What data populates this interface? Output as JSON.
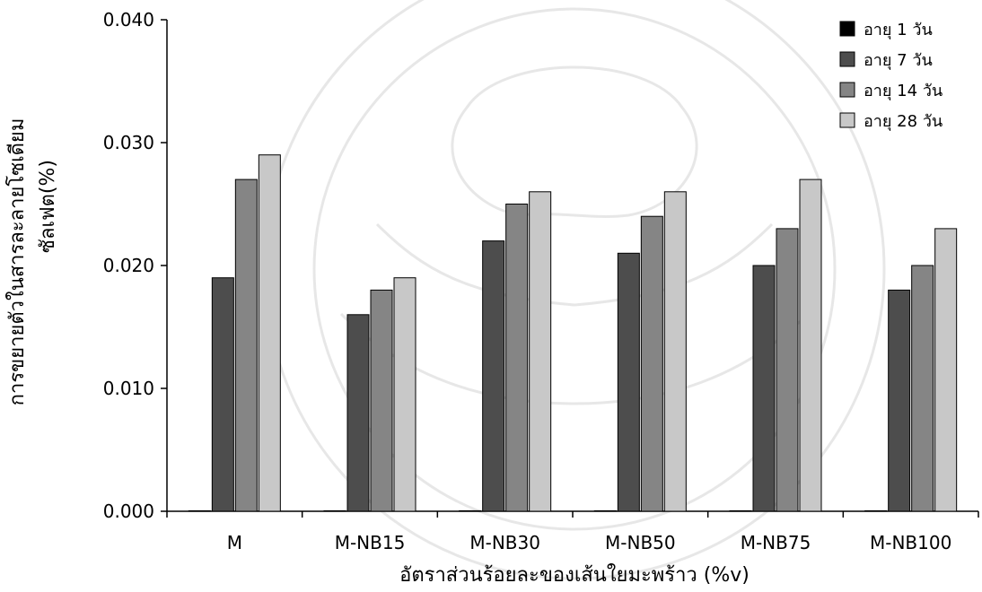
{
  "chart_data": {
    "type": "bar",
    "categories": [
      "M",
      "M-NB15",
      "M-NB30",
      "M-NB50",
      "M-NB75",
      "M-NB100"
    ],
    "series": [
      {
        "name": "อายุ 1 วัน",
        "values": [
          0.0,
          0.0,
          0.0,
          0.0,
          0.0,
          0.0
        ],
        "color": "#000000"
      },
      {
        "name": "อายุ 7 วัน",
        "values": [
          0.019,
          0.016,
          0.022,
          0.021,
          0.02,
          0.018
        ],
        "color": "#4d4d4d"
      },
      {
        "name": "อายุ 14 วัน",
        "values": [
          0.027,
          0.018,
          0.025,
          0.024,
          0.023,
          0.02
        ],
        "color": "#858585"
      },
      {
        "name": "อายุ 28 วัน",
        "values": [
          0.029,
          0.019,
          0.026,
          0.026,
          0.027,
          0.023
        ],
        "color": "#c8c8c8"
      }
    ],
    "xlabel": "อัตราส่วนร้อยละของเส้นใยมะพร้าว (%v)",
    "ylabel_line1": "การขยายตัวในสารละลายโซเดียม",
    "ylabel_line2": "ซัลเฟต(%)",
    "ylim": [
      0.0,
      0.04
    ],
    "yticks": [
      "0.000",
      "0.010",
      "0.020",
      "0.030",
      "0.040"
    ],
    "grid": false,
    "legend_position": "top-right"
  }
}
